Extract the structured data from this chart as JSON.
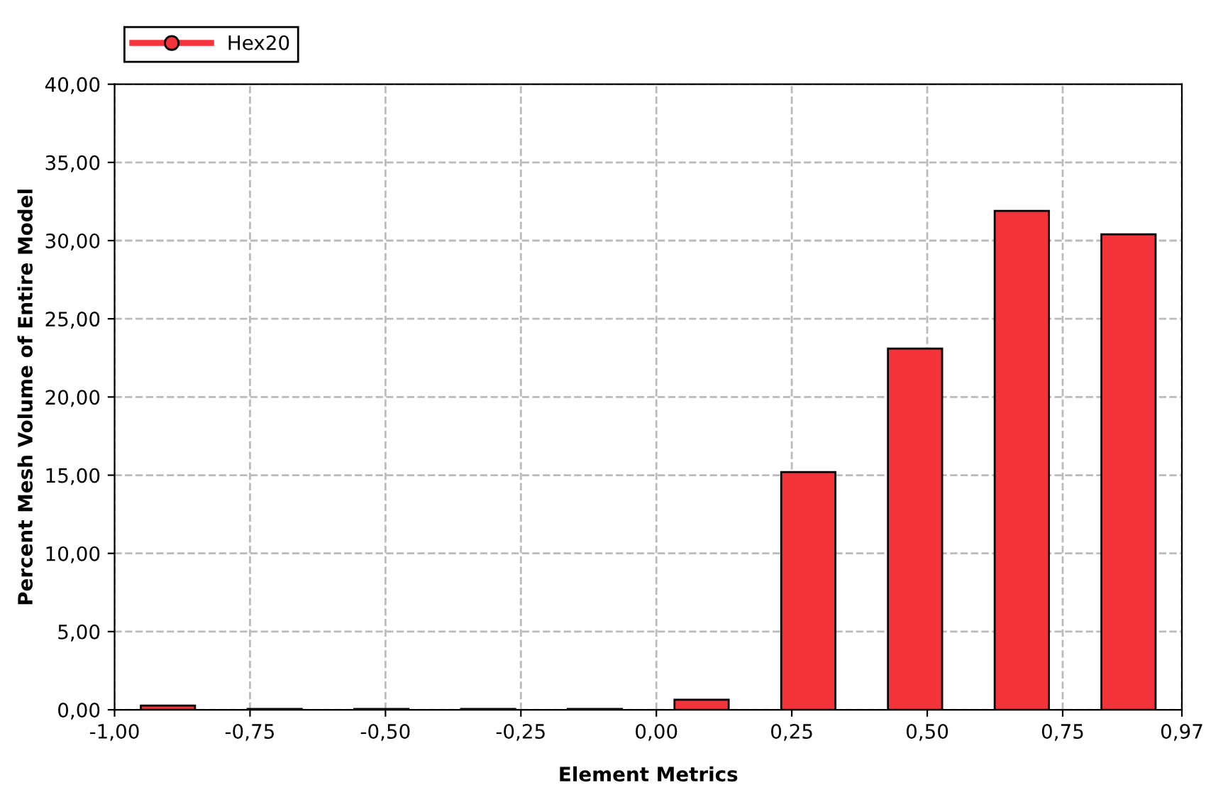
{
  "chart_data": {
    "type": "bar",
    "xlabel": "Element Metrics",
    "ylabel": "Percent Mesh Volume of Entire Model",
    "x": [
      -0.9015,
      -0.7045,
      -0.5075,
      -0.3105,
      -0.1135,
      0.0835,
      0.2805,
      0.4775,
      0.6745,
      0.8715
    ],
    "series": [
      {
        "name": "Hex20",
        "color": "#f4333a",
        "values": [
          0.27,
          0.05,
          0.05,
          0.05,
          0.05,
          0.64,
          15.2,
          23.1,
          31.9,
          30.4
        ]
      }
    ],
    "xlim": [
      -1,
      0.97
    ],
    "xticks": [
      {
        "value": -1,
        "label": "-1,00"
      },
      {
        "value": -0.75,
        "label": "-0,75"
      },
      {
        "value": -0.5,
        "label": "-0,50"
      },
      {
        "value": -0.25,
        "label": "-0,25"
      },
      {
        "value": 0,
        "label": "0,00"
      },
      {
        "value": 0.25,
        "label": "0,25"
      },
      {
        "value": 0.5,
        "label": "0,50"
      },
      {
        "value": 0.75,
        "label": "0,75"
      },
      {
        "value": 0.97,
        "label": "0,97"
      }
    ],
    "ylim": [
      0,
      40
    ],
    "yticks": [
      {
        "value": 0,
        "label": "0,00"
      },
      {
        "value": 5,
        "label": "5,00"
      },
      {
        "value": 10,
        "label": "10,00"
      },
      {
        "value": 15,
        "label": "15,00"
      },
      {
        "value": 20,
        "label": "20,00"
      },
      {
        "value": 25,
        "label": "25,00"
      },
      {
        "value": 30,
        "label": "30,00"
      },
      {
        "value": 35,
        "label": "35,00"
      },
      {
        "value": 40,
        "label": "40,00"
      }
    ],
    "grid": true,
    "legend": "top left",
    "marker": "circle",
    "line_style": "dashed"
  }
}
